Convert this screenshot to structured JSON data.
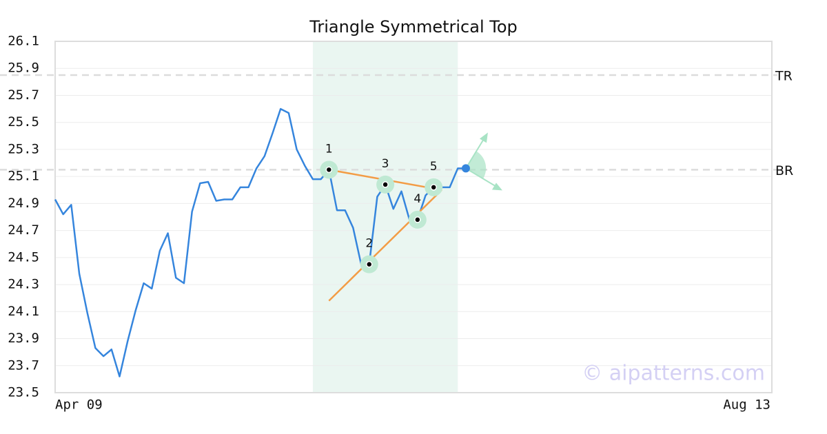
{
  "chart_data": {
    "type": "line",
    "title": "Triangle Symmetrical Top",
    "categories": [
      "Apr 09",
      null,
      null,
      null,
      null,
      null,
      null,
      null,
      null,
      null,
      null,
      null,
      null,
      null,
      null,
      null,
      null,
      null,
      null,
      null,
      null,
      null,
      null,
      null,
      null,
      null,
      null,
      null,
      null,
      null,
      null,
      null,
      null,
      null,
      null,
      null,
      null,
      null,
      null,
      null,
      null,
      null,
      null,
      null,
      null,
      null,
      null,
      null,
      null,
      null,
      null,
      null,
      null,
      null,
      null,
      null,
      null,
      null,
      null,
      null,
      null,
      null,
      null,
      null,
      null,
      null,
      null,
      null,
      null,
      null,
      null,
      null,
      null,
      null,
      null,
      null,
      null,
      null,
      null,
      null,
      null,
      null,
      null,
      null,
      null,
      null,
      null,
      null,
      null,
      "Aug 13"
    ],
    "series": [
      {
        "color": "#3585dd",
        "values": [
          24.93,
          24.82,
          24.89,
          24.38,
          24.09,
          23.83,
          23.77,
          23.82,
          23.62,
          23.88,
          24.11,
          24.31,
          24.27,
          24.55,
          24.68,
          24.35,
          24.31,
          24.84,
          25.05,
          25.06,
          24.92,
          24.93,
          24.93,
          25.02,
          25.02,
          25.16,
          25.25,
          25.42,
          25.6,
          25.57,
          25.3,
          25.18,
          25.08,
          25.08,
          25.15,
          24.85,
          24.85,
          24.72,
          24.45,
          24.45,
          24.95,
          25.04,
          24.86,
          24.99,
          24.78,
          24.78,
          24.96,
          25.02,
          25.02,
          25.02,
          25.16,
          25.16,
          null,
          null,
          null,
          null,
          null,
          null,
          null,
          null,
          null,
          null,
          null,
          null,
          null,
          null,
          null,
          null,
          null,
          null,
          null,
          null,
          null,
          null,
          null,
          null,
          null,
          null,
          null,
          null,
          null,
          null,
          null,
          null,
          null,
          null,
          null,
          null,
          null,
          null
        ]
      }
    ],
    "ylim": [
      23.5,
      26.1
    ],
    "yticks": [
      23.5,
      23.7,
      23.9,
      24.1,
      24.3,
      24.5,
      24.7,
      24.9,
      25.1,
      25.3,
      25.5,
      25.7,
      25.9,
      26.1
    ],
    "grid": true,
    "levels": [
      {
        "label": "TR",
        "value": 25.85
      },
      {
        "label": "BR",
        "value": 25.15
      }
    ],
    "pattern": {
      "range": [
        32,
        50
      ],
      "color": "#eaf6f1",
      "line_color": "#f39c45",
      "points": [
        {
          "label": "1",
          "index": 34,
          "value": 25.15
        },
        {
          "label": "2",
          "index": 39,
          "value": 24.45
        },
        {
          "label": "3",
          "index": 41,
          "value": 25.04
        },
        {
          "label": "4",
          "index": 45,
          "value": 24.78
        },
        {
          "label": "5",
          "index": 47,
          "value": 25.02
        }
      ],
      "lines": [
        {
          "x": [
            34,
            48
          ],
          "y": [
            25.15,
            25.0
          ]
        },
        {
          "x": [
            34,
            48
          ],
          "y": [
            24.18,
            25.0
          ]
        }
      ]
    },
    "watermark": "© aipatterns.com"
  }
}
